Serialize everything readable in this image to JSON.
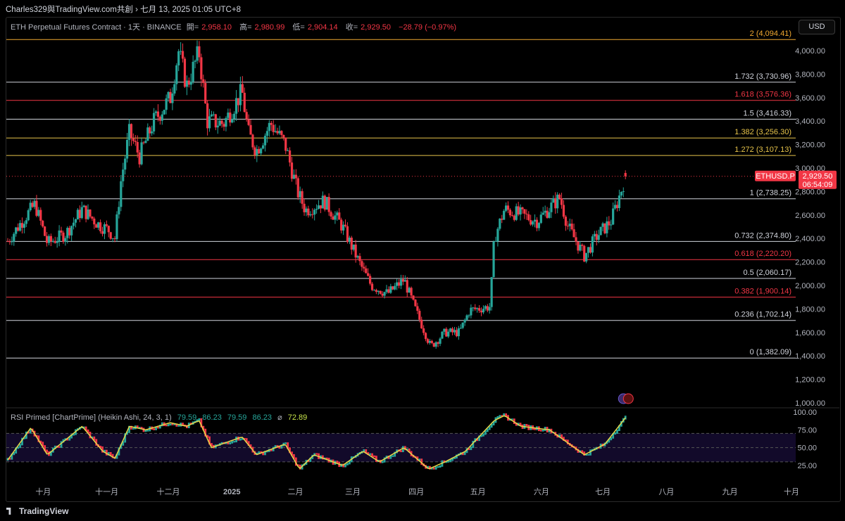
{
  "topbar": {
    "text": "Charles329與TradingView.com共創 › 七月 13, 2025 01:05 UTC+8"
  },
  "header": {
    "symbol": "ETH Perpetual Futures Contract · 1天 · BINANCE",
    "open_label": "開=",
    "open": "2,958.10",
    "high_label": "高=",
    "high": "2,980.99",
    "low_label": "低=",
    "low": "2,904.14",
    "close_label": "收=",
    "close": "2,929.50",
    "change": "−28.79 (−0.97%)"
  },
  "currency_button": "USD",
  "price_tag": {
    "symbol": "ETHUSD.P",
    "price": "2,929.50",
    "countdown": "06:54:09"
  },
  "fib_levels": [
    {
      "label": "2 (4,094.41)",
      "value": 4094.41,
      "color": "#f0a830"
    },
    {
      "label": "1.732 (3,730.96)",
      "value": 3730.96,
      "color": "#d1d4dc"
    },
    {
      "label": "1.618 (3,576.36)",
      "value": 3576.36,
      "color": "#f23645"
    },
    {
      "label": "1.5 (3,416.33)",
      "value": 3416.33,
      "color": "#d1d4dc"
    },
    {
      "label": "1.382 (3,256.30)",
      "value": 3256.3,
      "color": "#e6c34a"
    },
    {
      "label": "1.272 (3,107.13)",
      "value": 3107.13,
      "color": "#e6c34a"
    },
    {
      "label": "1 (2,738.25)",
      "value": 2738.25,
      "color": "#d1d4dc"
    },
    {
      "label": "0.732 (2,374.80)",
      "value": 2374.8,
      "color": "#d1d4dc"
    },
    {
      "label": "0.618 (2,220.20)",
      "value": 2220.2,
      "color": "#f23645"
    },
    {
      "label": "0.5 (2,060.17)",
      "value": 2060.17,
      "color": "#d1d4dc"
    },
    {
      "label": "0.382 (1,900.14)",
      "value": 1900.14,
      "color": "#f23645"
    },
    {
      "label": "0.236 (1,702.14)",
      "value": 1702.14,
      "color": "#d1d4dc"
    },
    {
      "label": "0 (1,382.09)",
      "value": 1382.09,
      "color": "#d1d4dc"
    }
  ],
  "rsi": {
    "title": "RSI Primed [ChartPrime] (Heikin Ashi, 24, 3, 1)",
    "v1": "79.59",
    "v2": "86.23",
    "v3": "79.59",
    "v4": "86.23",
    "symbol": "⌀",
    "v5": "72.89"
  },
  "chart_data": [
    {
      "type": "candlestick",
      "ylabel": "",
      "ylim": [
        1000,
        4200
      ],
      "yticks": [
        "4,000.00",
        "3,800.00",
        "3,600.00",
        "3,400.00",
        "3,200.00",
        "3,000.00",
        "2,800.00",
        "2,600.00",
        "2,400.00",
        "2,200.00",
        "2,000.00",
        "1,800.00",
        "1,600.00",
        "1,400.00",
        "1,200.00",
        "1,000.00"
      ],
      "ytick_values": [
        4000,
        3800,
        3600,
        3400,
        3200,
        3000,
        2800,
        2600,
        2400,
        2200,
        2000,
        1800,
        1600,
        1400,
        1200,
        1000
      ],
      "xticks": [
        "十月",
        "十一月",
        "十二月",
        "2025",
        "二月",
        "三月",
        "四月",
        "五月",
        "六月",
        "七月",
        "八月",
        "九月",
        "十月"
      ],
      "close_path": [
        [
          "2024-09-13",
          2360
        ],
        [
          "2024-09-22",
          2580
        ],
        [
          "2024-09-27",
          2690
        ],
        [
          "2024-10-03",
          2360
        ],
        [
          "2024-10-12",
          2440
        ],
        [
          "2024-10-20",
          2650
        ],
        [
          "2024-10-28",
          2520
        ],
        [
          "2024-11-02",
          2470
        ],
        [
          "2024-11-05",
          2400
        ],
        [
          "2024-11-08",
          2900
        ],
        [
          "2024-11-12",
          3300
        ],
        [
          "2024-11-17",
          3100
        ],
        [
          "2024-11-24",
          3400
        ],
        [
          "2024-12-02",
          3600
        ],
        [
          "2024-12-06",
          4000
        ],
        [
          "2024-12-10",
          3700
        ],
        [
          "2024-12-16",
          3990
        ],
        [
          "2024-12-20",
          3400
        ],
        [
          "2024-12-28",
          3380
        ],
        [
          "2025-01-06",
          3650
        ],
        [
          "2025-01-09",
          3300
        ],
        [
          "2025-01-13",
          3150
        ],
        [
          "2025-01-20",
          3380
        ],
        [
          "2025-01-27",
          3200
        ],
        [
          "2025-02-02",
          2800
        ],
        [
          "2025-02-06",
          2640
        ],
        [
          "2025-02-15",
          2720
        ],
        [
          "2025-02-24",
          2500
        ],
        [
          "2025-03-04",
          2200
        ],
        [
          "2025-03-10",
          2000
        ],
        [
          "2025-03-18",
          1930
        ],
        [
          "2025-03-26",
          2050
        ],
        [
          "2025-03-31",
          1820
        ],
        [
          "2025-04-08",
          1480
        ],
        [
          "2025-04-15",
          1600
        ],
        [
          "2025-04-22",
          1600
        ],
        [
          "2025-04-27",
          1790
        ],
        [
          "2025-05-07",
          1820
        ],
        [
          "2025-05-09",
          2400
        ],
        [
          "2025-05-14",
          2650
        ],
        [
          "2025-05-22",
          2600
        ],
        [
          "2025-05-30",
          2550
        ],
        [
          "2025-06-10",
          2750
        ],
        [
          "2025-06-14",
          2500
        ],
        [
          "2025-06-22",
          2250
        ],
        [
          "2025-06-28",
          2420
        ],
        [
          "2025-07-05",
          2550
        ],
        [
          "2025-07-09",
          2760
        ],
        [
          "2025-07-12",
          2929.5
        ]
      ],
      "last": {
        "open": 2958.1,
        "high": 2980.99,
        "low": 2904.14,
        "close": 2929.5
      }
    },
    {
      "type": "line",
      "ylim": [
        0,
        100
      ],
      "yticks": [
        "100.00",
        "75.00",
        "50.00",
        "25.00"
      ],
      "ytick_values": [
        100,
        75,
        50,
        25
      ],
      "series": [],
      "rsi_path": [
        [
          "2024-09-13",
          30
        ],
        [
          "2024-09-25",
          78
        ],
        [
          "2024-10-03",
          40
        ],
        [
          "2024-10-20",
          80
        ],
        [
          "2024-10-30",
          45
        ],
        [
          "2024-11-05",
          35
        ],
        [
          "2024-11-12",
          80
        ],
        [
          "2024-11-20",
          75
        ],
        [
          "2024-12-02",
          85
        ],
        [
          "2024-12-10",
          80
        ],
        [
          "2024-12-16",
          88
        ],
        [
          "2024-12-22",
          50
        ],
        [
          "2025-01-06",
          65
        ],
        [
          "2025-01-13",
          40
        ],
        [
          "2025-01-27",
          55
        ],
        [
          "2025-02-03",
          20
        ],
        [
          "2025-02-10",
          40
        ],
        [
          "2025-02-24",
          25
        ],
        [
          "2025-03-06",
          45
        ],
        [
          "2025-03-14",
          30
        ],
        [
          "2025-03-26",
          50
        ],
        [
          "2025-04-07",
          20
        ],
        [
          "2025-04-15",
          30
        ],
        [
          "2025-04-25",
          45
        ],
        [
          "2025-05-09",
          88
        ],
        [
          "2025-05-14",
          95
        ],
        [
          "2025-05-22",
          80
        ],
        [
          "2025-06-05",
          75
        ],
        [
          "2025-06-22",
          40
        ],
        [
          "2025-07-02",
          55
        ],
        [
          "2025-07-12",
          92
        ]
      ]
    }
  ]
}
